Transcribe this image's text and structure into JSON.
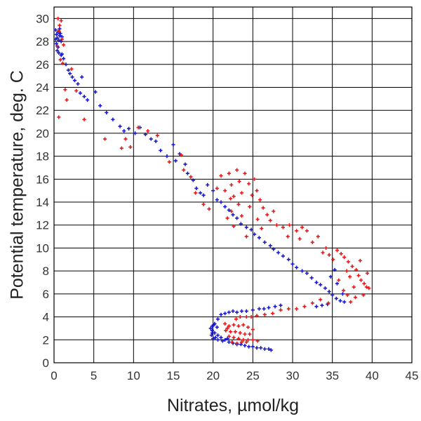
{
  "chart_data": {
    "type": "scatter",
    "xlabel": "Nitrates, µmol/kg",
    "ylabel": "Potential temperature, deg. C",
    "xlim": [
      0,
      45
    ],
    "ylim": [
      0,
      31
    ],
    "xticks": [
      0,
      5,
      10,
      15,
      20,
      25,
      30,
      35,
      40,
      45
    ],
    "yticks": [
      0,
      2,
      4,
      6,
      8,
      10,
      12,
      14,
      16,
      18,
      20,
      22,
      24,
      26,
      28,
      30
    ],
    "grid": true,
    "marker": "plus",
    "series": [
      {
        "color": "#1a1acc",
        "points": [
          [
            0.2,
            29.0
          ],
          [
            0.3,
            28.6
          ],
          [
            0.4,
            28.3
          ],
          [
            0.5,
            28.8
          ],
          [
            0.6,
            28.1
          ],
          [
            0.7,
            28.5
          ],
          [
            0.3,
            27.8
          ],
          [
            0.5,
            27.5
          ],
          [
            0.8,
            28.7
          ],
          [
            1.0,
            28.4
          ],
          [
            0.4,
            27.2
          ],
          [
            0.6,
            27.0
          ],
          [
            0.9,
            26.8
          ],
          [
            1.2,
            26.5
          ],
          [
            1.0,
            26.9
          ],
          [
            0.2,
            28.2
          ],
          [
            0.7,
            29.1
          ],
          [
            0.9,
            28.0
          ],
          [
            1.5,
            26.0
          ],
          [
            1.8,
            25.5
          ],
          [
            2.0,
            25.2
          ],
          [
            2.3,
            24.9
          ],
          [
            2.6,
            24.6
          ],
          [
            3.0,
            24.3
          ],
          [
            3.5,
            24.9
          ],
          [
            3.3,
            23.5
          ],
          [
            3.8,
            23.2
          ],
          [
            4.2,
            22.9
          ],
          [
            5.2,
            23.6
          ],
          [
            5.8,
            22.4
          ],
          [
            6.6,
            21.8
          ],
          [
            7.4,
            21.2
          ],
          [
            8.3,
            20.6
          ],
          [
            8.8,
            20.2
          ],
          [
            9.4,
            20.4
          ],
          [
            10.2,
            20.0
          ],
          [
            10.8,
            20.5
          ],
          [
            11.5,
            19.9
          ],
          [
            12.2,
            19.5
          ],
          [
            12.8,
            19.3
          ],
          [
            13.4,
            18.5
          ],
          [
            14.2,
            18.0
          ],
          [
            15.0,
            19.0
          ],
          [
            15.3,
            17.6
          ],
          [
            15.8,
            18.2
          ],
          [
            16.5,
            17.3
          ],
          [
            16.8,
            16.5
          ],
          [
            17.5,
            15.9
          ],
          [
            17.9,
            15.2
          ],
          [
            18.4,
            14.8
          ],
          [
            18.8,
            14.6
          ],
          [
            19.3,
            15.5
          ],
          [
            20.0,
            15.0
          ],
          [
            20.5,
            14.2
          ],
          [
            21.0,
            14.0
          ],
          [
            21.5,
            13.6
          ],
          [
            22.0,
            13.3
          ],
          [
            22.5,
            12.9
          ],
          [
            23.0,
            12.6
          ],
          [
            23.5,
            12.1
          ],
          [
            24.2,
            11.8
          ],
          [
            24.8,
            11.6
          ],
          [
            25.2,
            11.2
          ],
          [
            25.8,
            10.9
          ],
          [
            26.5,
            10.5
          ],
          [
            27.2,
            10.2
          ],
          [
            27.6,
            9.9
          ],
          [
            28.2,
            9.6
          ],
          [
            28.8,
            9.3
          ],
          [
            29.5,
            9.0
          ],
          [
            30.0,
            8.6
          ],
          [
            30.5,
            8.3
          ],
          [
            31.2,
            8.0
          ],
          [
            31.8,
            7.8
          ],
          [
            32.4,
            7.4
          ],
          [
            33.0,
            7.0
          ],
          [
            33.5,
            6.8
          ],
          [
            34.1,
            6.5
          ],
          [
            34.6,
            6.2
          ],
          [
            35.0,
            5.9
          ],
          [
            35.5,
            5.6
          ],
          [
            36.0,
            5.4
          ],
          [
            36.5,
            5.3
          ],
          [
            34.8,
            7.5
          ],
          [
            35.6,
            6.9
          ],
          [
            36.3,
            6.0
          ],
          [
            35.3,
            8.1
          ],
          [
            34.4,
            5.1
          ],
          [
            33.7,
            5.0
          ],
          [
            33.0,
            4.9
          ],
          [
            28.5,
            5.0
          ],
          [
            27.8,
            4.9
          ],
          [
            27.0,
            4.8
          ],
          [
            26.4,
            4.7
          ],
          [
            25.8,
            4.7
          ],
          [
            25.0,
            4.6
          ],
          [
            24.2,
            4.5
          ],
          [
            23.6,
            4.5
          ],
          [
            23.0,
            4.4
          ],
          [
            22.5,
            4.5
          ],
          [
            22.0,
            4.4
          ],
          [
            21.5,
            4.3
          ],
          [
            21.0,
            4.2
          ],
          [
            20.6,
            3.8
          ],
          [
            20.2,
            3.4
          ],
          [
            19.9,
            3.2
          ],
          [
            19.7,
            3.0
          ],
          [
            19.9,
            2.8
          ],
          [
            20.2,
            2.6
          ],
          [
            20.6,
            2.4
          ],
          [
            20.3,
            2.2
          ],
          [
            20.0,
            2.1
          ],
          [
            19.8,
            2.4
          ],
          [
            19.9,
            2.6
          ],
          [
            20.5,
            3.1
          ],
          [
            20.1,
            3.3
          ],
          [
            21.0,
            2.2
          ],
          [
            21.5,
            2.0
          ],
          [
            22.0,
            1.8
          ],
          [
            22.5,
            1.7
          ],
          [
            23.0,
            1.6
          ],
          [
            23.5,
            1.6
          ],
          [
            24.0,
            1.5
          ],
          [
            24.5,
            1.4
          ],
          [
            25.0,
            1.4
          ],
          [
            25.5,
            1.3
          ],
          [
            26.0,
            1.3
          ],
          [
            26.5,
            1.2
          ],
          [
            27.0,
            1.2
          ],
          [
            27.3,
            1.1
          ],
          [
            21.2,
            1.9
          ],
          [
            21.8,
            2.1
          ],
          [
            20.6,
            2.0
          ]
        ]
      },
      {
        "color": "#e61a1a",
        "points": [
          [
            0.5,
            30.0
          ],
          [
            0.7,
            29.4
          ],
          [
            0.9,
            29.8
          ],
          [
            0.6,
            28.9
          ],
          [
            1.0,
            28.2
          ],
          [
            1.2,
            27.7
          ],
          [
            0.8,
            26.4
          ],
          [
            1.1,
            26.1
          ],
          [
            0.4,
            27.6
          ],
          [
            1.4,
            23.8
          ],
          [
            1.6,
            22.9
          ],
          [
            2.2,
            25.6
          ],
          [
            2.8,
            23.7
          ],
          [
            0.6,
            21.4
          ],
          [
            3.8,
            21.2
          ],
          [
            6.4,
            19.5
          ],
          [
            8.5,
            18.7
          ],
          [
            9.0,
            19.5
          ],
          [
            9.6,
            18.8
          ],
          [
            10.6,
            20.5
          ],
          [
            11.8,
            20.2
          ],
          [
            13.0,
            19.8
          ],
          [
            14.5,
            17.5
          ],
          [
            16.3,
            16.8
          ],
          [
            16.0,
            18.1
          ],
          [
            17.2,
            16.2
          ],
          [
            17.8,
            14.8
          ],
          [
            18.8,
            13.8
          ],
          [
            19.5,
            13.4
          ],
          [
            20.5,
            15.2
          ],
          [
            21.0,
            16.3
          ],
          [
            21.5,
            15.0
          ],
          [
            22.0,
            16.5
          ],
          [
            22.3,
            15.5
          ],
          [
            22.6,
            14.5
          ],
          [
            23.0,
            16.8
          ],
          [
            23.3,
            15.8
          ],
          [
            23.6,
            14.8
          ],
          [
            24.0,
            16.5
          ],
          [
            24.5,
            15.6
          ],
          [
            24.9,
            14.6
          ],
          [
            25.2,
            16.0
          ],
          [
            25.5,
            15.0
          ],
          [
            25.9,
            14.2
          ],
          [
            26.3,
            13.5
          ],
          [
            26.8,
            12.9
          ],
          [
            27.2,
            12.4
          ],
          [
            27.6,
            13.2
          ],
          [
            22.3,
            13.2
          ],
          [
            21.8,
            12.6
          ],
          [
            22.6,
            11.9
          ],
          [
            23.6,
            12.8
          ],
          [
            24.6,
            13.6
          ],
          [
            25.6,
            12.5
          ],
          [
            26.1,
            11.7
          ],
          [
            24.2,
            11.0
          ],
          [
            23.2,
            13.8
          ],
          [
            22.2,
            14.3
          ],
          [
            28.0,
            12.0
          ],
          [
            28.8,
            11.8
          ],
          [
            29.6,
            12.0
          ],
          [
            30.5,
            11.5
          ],
          [
            31.2,
            11.8
          ],
          [
            31.8,
            11.5
          ],
          [
            29.4,
            11.0
          ],
          [
            30.9,
            10.8
          ],
          [
            32.5,
            10.5
          ],
          [
            33.2,
            11.0
          ],
          [
            33.8,
            9.6
          ],
          [
            34.2,
            10.0
          ],
          [
            34.6,
            9.4
          ],
          [
            35.1,
            9.0
          ],
          [
            35.6,
            9.8
          ],
          [
            36.1,
            9.5
          ],
          [
            36.5,
            9.2
          ],
          [
            37.0,
            8.8
          ],
          [
            37.5,
            8.4
          ],
          [
            38.0,
            8.1
          ],
          [
            38.3,
            7.6
          ],
          [
            38.6,
            7.2
          ],
          [
            39.0,
            6.9
          ],
          [
            39.3,
            6.6
          ],
          [
            39.6,
            6.5
          ],
          [
            37.2,
            7.5
          ],
          [
            37.7,
            6.6
          ],
          [
            36.9,
            5.9
          ],
          [
            36.4,
            6.3
          ],
          [
            37.9,
            5.7
          ],
          [
            37.3,
            5.3
          ],
          [
            36.8,
            8.0
          ],
          [
            38.5,
            8.9
          ],
          [
            35.8,
            7.2
          ],
          [
            38.9,
            5.9
          ],
          [
            39.4,
            7.8
          ],
          [
            34.5,
            5.2
          ],
          [
            33.5,
            5.5
          ],
          [
            32.5,
            5.2
          ],
          [
            31.5,
            4.9
          ],
          [
            30.5,
            4.7
          ],
          [
            29.5,
            4.7
          ],
          [
            28.5,
            4.6
          ],
          [
            27.5,
            4.3
          ],
          [
            26.5,
            4.2
          ],
          [
            25.5,
            4.1
          ],
          [
            24.8,
            4.0
          ],
          [
            24.2,
            4.0
          ],
          [
            23.4,
            4.0
          ],
          [
            22.9,
            3.8
          ],
          [
            21.5,
            3.4
          ],
          [
            22.0,
            3.2
          ],
          [
            22.6,
            3.3
          ],
          [
            23.2,
            3.2
          ],
          [
            23.8,
            3.3
          ],
          [
            24.4,
            3.1
          ],
          [
            25.0,
            2.9
          ],
          [
            21.6,
            2.8
          ],
          [
            22.2,
            2.7
          ],
          [
            22.8,
            2.7
          ],
          [
            23.4,
            2.6
          ],
          [
            24.0,
            2.5
          ],
          [
            24.6,
            2.5
          ],
          [
            22.0,
            2.3
          ],
          [
            22.6,
            2.2
          ],
          [
            23.2,
            2.1
          ],
          [
            23.8,
            2.0
          ],
          [
            24.4,
            2.0
          ],
          [
            25.0,
            2.0
          ],
          [
            25.6,
            1.9
          ],
          [
            22.4,
            1.8
          ],
          [
            23.0,
            1.7
          ],
          [
            23.6,
            1.8
          ],
          [
            24.2,
            1.8
          ],
          [
            21.8,
            3.0
          ]
        ]
      }
    ]
  }
}
